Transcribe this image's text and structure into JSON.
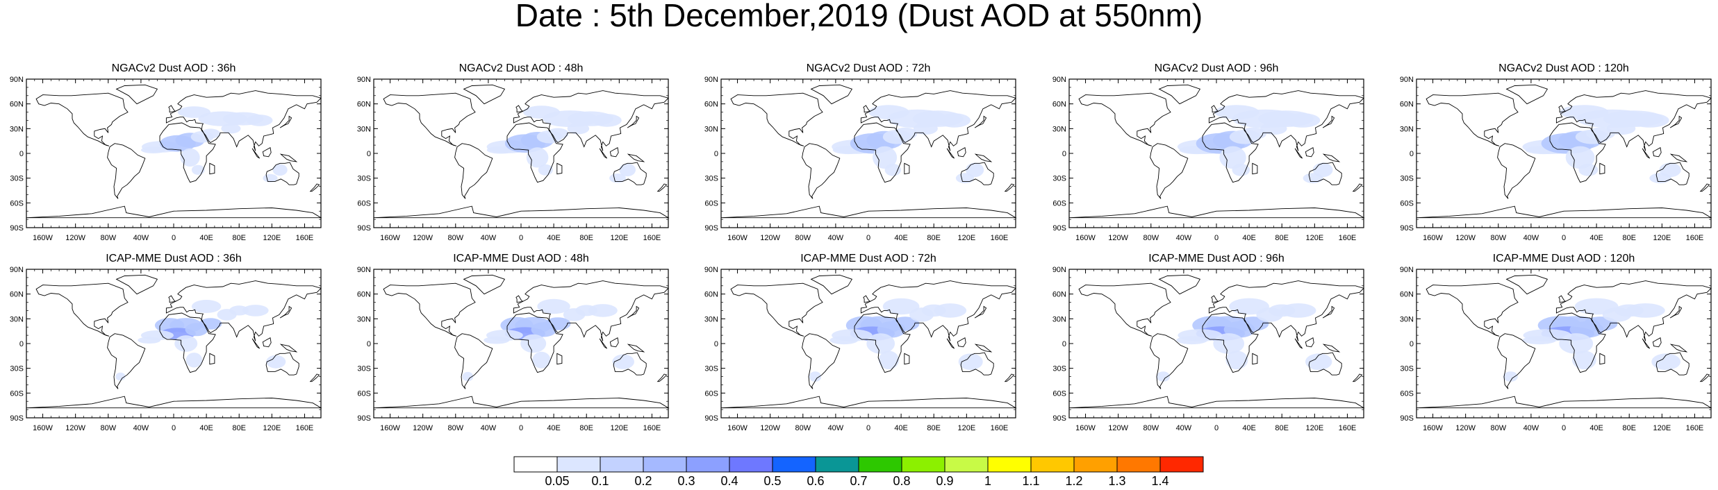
{
  "title": "Date : 5th December,2019 (Dust AOD at 550nm)",
  "lat_labels": [
    "90N",
    "60N",
    "30N",
    "0",
    "30S",
    "60S",
    "90S"
  ],
  "lon_labels": [
    "160W",
    "120W",
    "80W",
    "40W",
    "0",
    "40E",
    "80E",
    "120E",
    "160E"
  ],
  "panels": [
    {
      "label": "NGACv2 Dust AOD : 36h"
    },
    {
      "label": "NGACv2 Dust AOD : 48h"
    },
    {
      "label": "NGACv2 Dust AOD : 72h"
    },
    {
      "label": "NGACv2 Dust AOD : 96h"
    },
    {
      "label": "NGACv2 Dust AOD : 120h"
    },
    {
      "label": "ICAP-MME Dust AOD : 36h"
    },
    {
      "label": "ICAP-MME Dust AOD : 48h"
    },
    {
      "label": "ICAP-MME Dust AOD : 72h"
    },
    {
      "label": "ICAP-MME Dust AOD : 96h"
    },
    {
      "label": "ICAP-MME Dust AOD : 120h"
    }
  ],
  "colorbar": {
    "labels": [
      "0.05",
      "0.1",
      "0.2",
      "0.3",
      "0.4",
      "0.5",
      "0.6",
      "0.7",
      "0.8",
      "0.9",
      "1",
      "1.1",
      "1.2",
      "1.3",
      "1.4"
    ],
    "colors": [
      "#ffffff",
      "#dce6ff",
      "#c3d2ff",
      "#a5b9ff",
      "#8ca0ff",
      "#6e78ff",
      "#1464ff",
      "#0a9696",
      "#2dc800",
      "#8cf000",
      "#c8fa46",
      "#ffff00",
      "#ffc800",
      "#ffa000",
      "#ff7800",
      "#ff2800"
    ]
  },
  "land_color": "#ffffff",
  "dust_color_light": "#dce6ff",
  "dust_color_mid": "#b4c8ff",
  "dust_color_high": "#8ca0ff"
}
